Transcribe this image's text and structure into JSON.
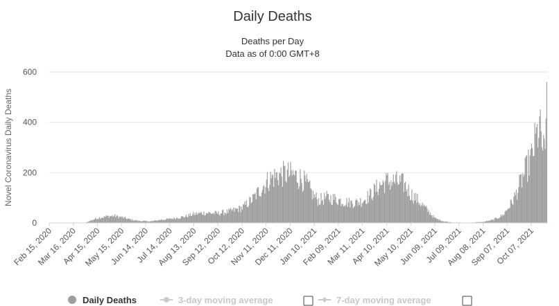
{
  "chart_data": {
    "type": "bar",
    "title": "Daily Deaths",
    "subtitle": "Deaths per Day",
    "subtitle2": "Data as of 0:00 GMT+8",
    "xlabel": "",
    "ylabel": "Novel Coronavirus Daily Deaths",
    "ylim": [
      0,
      600
    ],
    "y_ticks": [
      "0",
      "200",
      "400",
      "600"
    ],
    "grid": true,
    "x_tick_labels": [
      "Feb 15, 2020",
      "Mar 16, 2020",
      "Apr 15, 2020",
      "May 15, 2020",
      "Jun 14, 2020",
      "Jul 14, 2020",
      "Aug 13, 2020",
      "Sep 12, 2020",
      "Oct 12, 2020",
      "Nov 11, 2020",
      "Dec 11, 2020",
      "Jan 10, 2021",
      "Feb 09, 2021",
      "Mar 11, 2021",
      "Apr 10, 2021",
      "May 10, 2021",
      "Jun 09, 2021",
      "Jul 09, 2021",
      "Aug 08, 2021",
      "Sep 07, 2021",
      "Oct 07, 2021"
    ],
    "x_range": [
      "2020-02-15",
      "2021-10-26"
    ],
    "series_color": "#9e9e9e",
    "series": [
      {
        "name": "Daily Deaths",
        "anchors": [
          [
            "2020-02-15",
            0
          ],
          [
            "2020-03-30",
            0
          ],
          [
            "2020-04-05",
            8
          ],
          [
            "2020-04-15",
            20
          ],
          [
            "2020-04-25",
            25
          ],
          [
            "2020-05-05",
            28
          ],
          [
            "2020-05-15",
            22
          ],
          [
            "2020-05-25",
            14
          ],
          [
            "2020-06-05",
            8
          ],
          [
            "2020-06-20",
            6
          ],
          [
            "2020-07-01",
            12
          ],
          [
            "2020-07-14",
            16
          ],
          [
            "2020-08-01",
            25
          ],
          [
            "2020-08-13",
            35
          ],
          [
            "2020-08-25",
            40
          ],
          [
            "2020-09-12",
            38
          ],
          [
            "2020-09-25",
            45
          ],
          [
            "2020-10-12",
            60
          ],
          [
            "2020-10-25",
            95
          ],
          [
            "2020-11-05",
            140
          ],
          [
            "2020-11-15",
            175
          ],
          [
            "2020-11-25",
            190
          ],
          [
            "2020-12-05",
            195
          ],
          [
            "2020-12-15",
            190
          ],
          [
            "2020-12-25",
            175
          ],
          [
            "2021-01-01",
            150
          ],
          [
            "2021-01-08",
            110
          ],
          [
            "2021-01-15",
            90
          ],
          [
            "2021-01-25",
            100
          ],
          [
            "2021-02-05",
            95
          ],
          [
            "2021-02-15",
            85
          ],
          [
            "2021-02-25",
            80
          ],
          [
            "2021-03-05",
            82
          ],
          [
            "2021-03-11",
            90
          ],
          [
            "2021-03-20",
            110
          ],
          [
            "2021-04-01",
            150
          ],
          [
            "2021-04-10",
            165
          ],
          [
            "2021-04-20",
            165
          ],
          [
            "2021-05-01",
            155
          ],
          [
            "2021-05-10",
            115
          ],
          [
            "2021-05-20",
            85
          ],
          [
            "2021-06-01",
            45
          ],
          [
            "2021-06-09",
            18
          ],
          [
            "2021-06-20",
            6
          ],
          [
            "2021-07-01",
            2
          ],
          [
            "2021-07-20",
            1
          ],
          [
            "2021-08-08",
            4
          ],
          [
            "2021-08-20",
            12
          ],
          [
            "2021-09-01",
            30
          ],
          [
            "2021-09-07",
            55
          ],
          [
            "2021-09-15",
            95
          ],
          [
            "2021-09-22",
            150
          ],
          [
            "2021-09-30",
            210
          ],
          [
            "2021-10-07",
            260
          ],
          [
            "2021-10-12",
            330
          ],
          [
            "2021-10-17",
            380
          ],
          [
            "2021-10-21",
            300
          ],
          [
            "2021-10-24",
            260
          ],
          [
            "2021-10-26",
            560
          ]
        ]
      }
    ]
  },
  "legend": {
    "items": [
      {
        "label": "Daily Deaths",
        "color": "#333333"
      },
      {
        "label": "3-day moving average",
        "color": "#c8c8c8"
      },
      {
        "label": "7-day moving average",
        "color": "#c8c8c8"
      }
    ]
  }
}
